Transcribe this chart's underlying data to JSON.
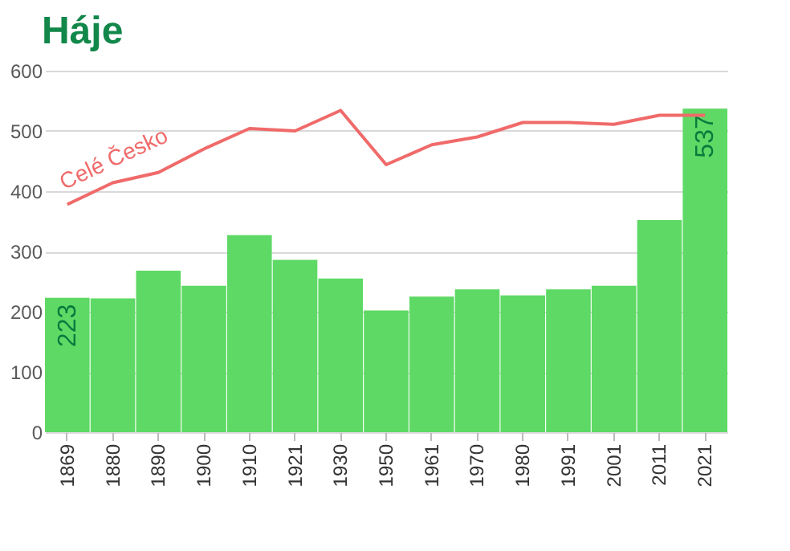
{
  "chart_data": {
    "type": "bar",
    "title": "Háje",
    "categories": [
      "1869",
      "1880",
      "1890",
      "1900",
      "1910",
      "1921",
      "1930",
      "1950",
      "1961",
      "1970",
      "1980",
      "1991",
      "2001",
      "2011",
      "2021"
    ],
    "series": [
      {
        "color": "#5ed965",
        "values": [
          223,
          222,
          268,
          243,
          327,
          286,
          255,
          202,
          225,
          237,
          227,
          237,
          243,
          352,
          537
        ],
        "value_labels": [
          "223",
          null,
          null,
          null,
          null,
          null,
          null,
          null,
          null,
          null,
          null,
          null,
          null,
          null,
          "537"
        ]
      },
      {
        "type": "line",
        "name": "Celé Česko",
        "color": "#f06a6a",
        "values": [
          378,
          414,
          431,
          470,
          504,
          500,
          534,
          444,
          477,
          490,
          514,
          514,
          511,
          526,
          526
        ]
      }
    ],
    "ylim": [
      0,
      600
    ],
    "yticks": [
      0,
      100,
      200,
      300,
      400,
      500,
      600
    ],
    "grid": "y"
  }
}
